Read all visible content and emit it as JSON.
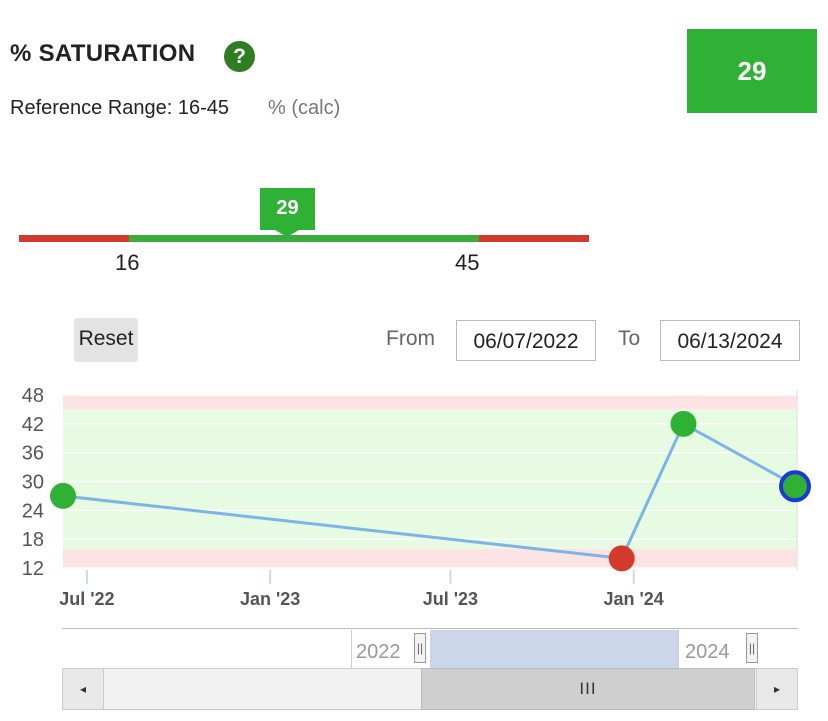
{
  "header": {
    "title": "% SATURATION",
    "help_glyph": "?",
    "reference_label": "Reference Range: 16-45",
    "unit": "% (calc)",
    "current_value": "29"
  },
  "range_bar": {
    "low": "16",
    "high": "45",
    "marker_value": "29",
    "colors": {
      "out_of_range": "#d33a2c",
      "in_range": "#39ad3b"
    }
  },
  "controls": {
    "reset_label": "Reset",
    "from_label": "From",
    "from_date": "06/07/2022",
    "to_label": "To",
    "to_date": "06/13/2024"
  },
  "chart_data": {
    "type": "line",
    "x_min": "2022-06-07",
    "x_max": "2024-06-13",
    "ylim": [
      12,
      48
    ],
    "y_ticks": [
      "48",
      "42",
      "36",
      "30",
      "24",
      "18",
      "12"
    ],
    "x_ticks": [
      {
        "label": "Jul '22",
        "date": "2022-07-01"
      },
      {
        "label": "Jan '23",
        "date": "2023-01-01"
      },
      {
        "label": "Jul '23",
        "date": "2023-07-01"
      },
      {
        "label": "Jan '24",
        "date": "2024-01-01"
      }
    ],
    "reference_range": [
      16,
      45
    ],
    "series": [
      {
        "color": "#7db4e8",
        "points": [
          {
            "date": "2022-06-07",
            "value": 27,
            "status": "normal"
          },
          {
            "date": "2023-12-20",
            "value": 14,
            "status": "low"
          },
          {
            "date": "2024-02-20",
            "value": 42,
            "status": "normal"
          },
          {
            "date": "2024-06-13",
            "value": 29,
            "status": "normal",
            "selected": true
          }
        ]
      }
    ],
    "colors": {
      "normal": "#2eb135",
      "low": "#d33a2c",
      "selected_ring": "#1a37d8",
      "normal_band": "#e6fbe1",
      "out_band": "#fde3e3"
    }
  },
  "navigator": {
    "year_left": "2022",
    "year_right": "2024",
    "handle_glyph": "||",
    "thumb_glyph": "III",
    "left_arrow": "◂",
    "right_arrow": "▸"
  }
}
